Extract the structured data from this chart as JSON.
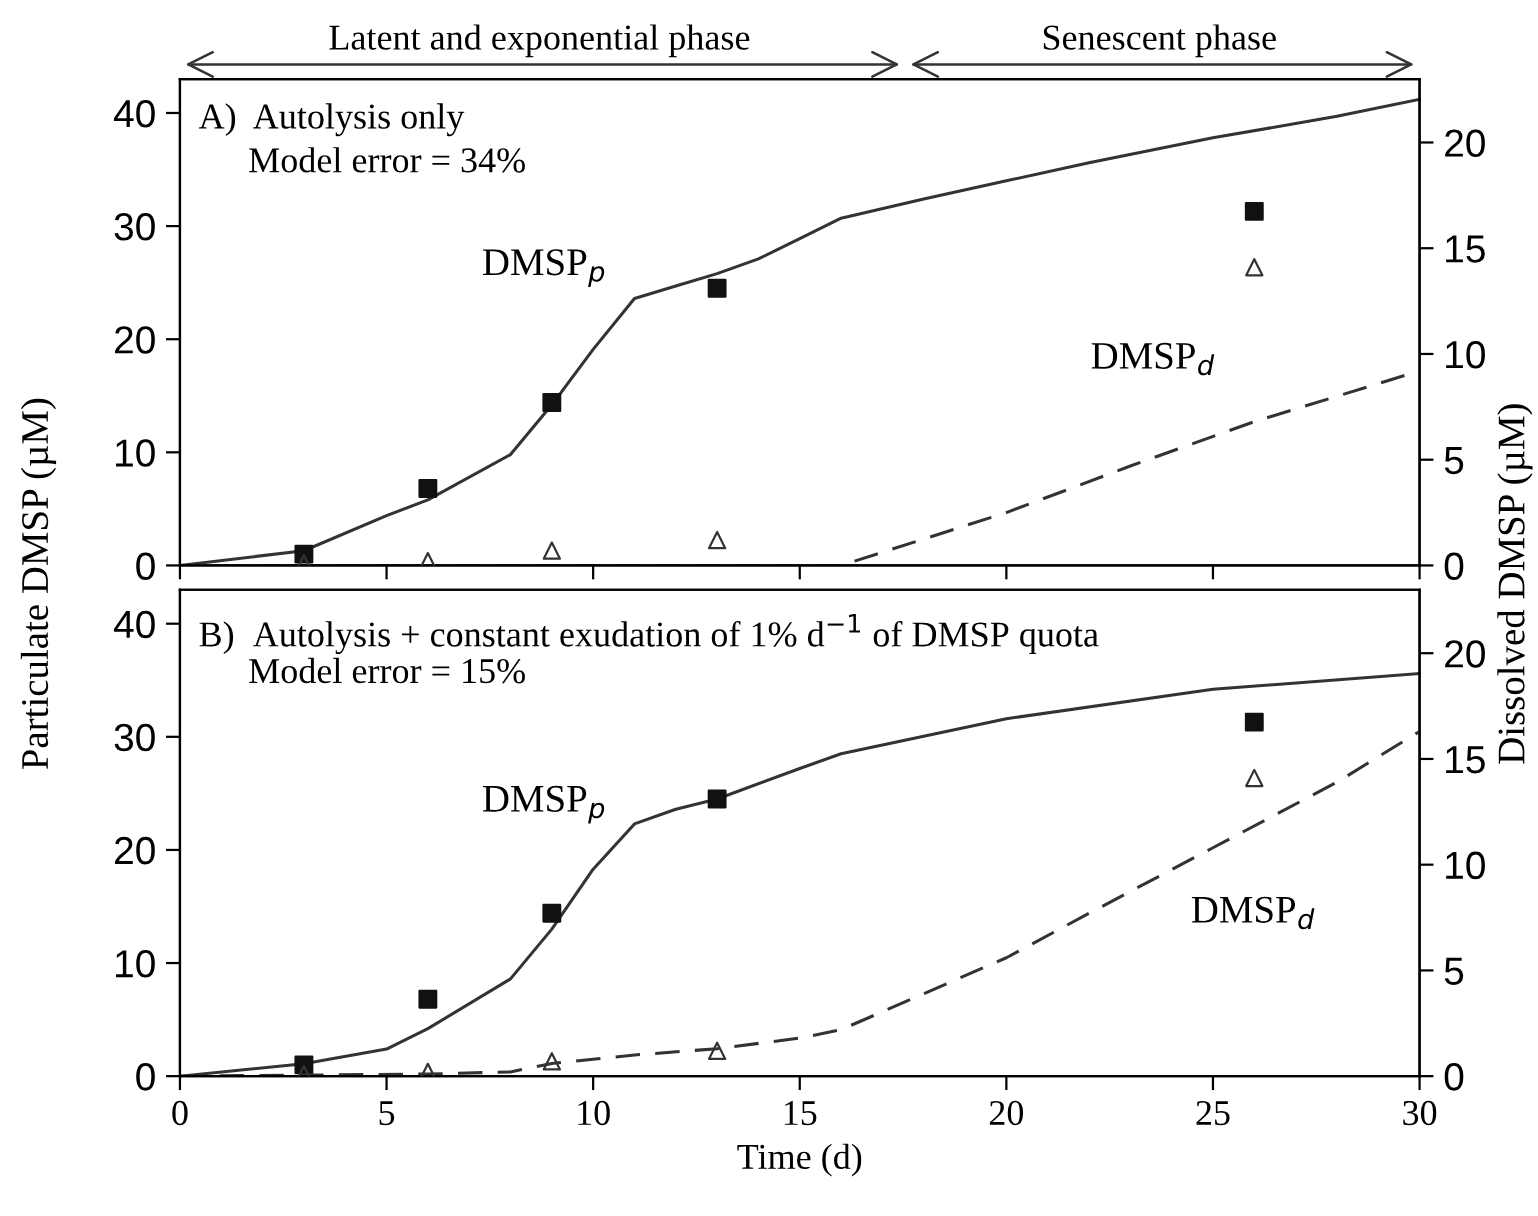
{
  "chart_data": [
    {
      "type": "line",
      "ylabel": "Particulate DMSP (µM)",
      "y2label": "Dissolved DMSP (µM)",
      "annotations": [
        "A)  Autolysis only",
        "Model error = 34%",
        "Latent and exponential phase",
        "Senescent phase"
      ],
      "xlim": [
        0,
        30
      ],
      "xticks": [
        0,
        5,
        10,
        15,
        20,
        25,
        30
      ],
      "ylim": [
        0,
        43
      ],
      "yticks": [
        0,
        10,
        20,
        30,
        40
      ],
      "y2lim": [
        0,
        23
      ],
      "y2ticks": [
        0,
        5,
        10,
        15,
        20
      ],
      "tick_labels": "y",
      "grid": false,
      "legend": false,
      "series": [
        {
          "type": "line",
          "name": "DMSP$_{p}$",
          "color": "#333333",
          "line_style": "solid",
          "x": [
            0,
            3,
            5,
            6,
            8,
            9,
            10,
            11,
            12,
            13,
            14,
            15,
            16,
            18,
            20,
            22,
            25,
            28,
            30
          ],
          "values": [
            0,
            1.3,
            4.4,
            5.8,
            9.8,
            14.2,
            19.1,
            23.6,
            24.7,
            25.8,
            27.1,
            28.9,
            30.7,
            32.4,
            34.0,
            35.6,
            37.8,
            39.7,
            41.2
          ]
        },
        {
          "type": "line",
          "name": "DMSP$_{d}$",
          "axis": "y2",
          "color": "#333333",
          "line_style": "dashed",
          "x": [
            0,
            16,
            20,
            23,
            26,
            30
          ],
          "values": [
            0,
            0,
            2.5,
            4.7,
            6.8,
            9.2
          ]
        },
        {
          "type": "scatter",
          "marker": "square",
          "color": "#111111",
          "x": [
            3,
            6,
            9,
            13,
            26
          ],
          "values": [
            1,
            6.8,
            14.4,
            24.5,
            31.3
          ]
        },
        {
          "type": "scatter",
          "axis": "y2",
          "marker": "triangle",
          "color": "#333333",
          "x": [
            3,
            6,
            9,
            13,
            26
          ],
          "values": [
            0.1,
            0.2,
            0.7,
            1.2,
            14.1
          ]
        }
      ]
    },
    {
      "type": "line",
      "xlabel": "Time (d)",
      "annotations": [
        "B)  Autolysis + constant exudation of 1% d$^{−1}$ of DMSP quota",
        "Model error = 15%"
      ],
      "xlim": [
        0,
        30
      ],
      "xticks": [
        0,
        5,
        10,
        15,
        20,
        25,
        30
      ],
      "ylim": [
        0,
        43
      ],
      "yticks": [
        0,
        10,
        20,
        30,
        40
      ],
      "y2lim": [
        0,
        23
      ],
      "y2ticks": [
        0,
        5,
        10,
        15,
        20
      ],
      "grid": false,
      "legend": false,
      "series": [
        {
          "type": "line",
          "name": "DMSP$_{p}$",
          "color": "#333333",
          "line_style": "solid",
          "x": [
            0,
            3,
            5,
            6,
            8,
            9,
            10,
            11,
            12,
            13,
            15,
            16,
            20,
            25,
            30
          ],
          "values": [
            0,
            1.1,
            2.4,
            4.2,
            8.6,
            13,
            18.3,
            22.3,
            23.6,
            24.5,
            27.2,
            28.5,
            31.6,
            34.2,
            35.6
          ]
        },
        {
          "type": "line",
          "name": "DMSP$_{d}$",
          "axis": "y2",
          "color": "#333333",
          "line_style": "dashed",
          "x": [
            0,
            6,
            8,
            9,
            11,
            13,
            15,
            16,
            18,
            20,
            22,
            25,
            28,
            30
          ],
          "values": [
            0,
            0.1,
            0.2,
            0.6,
            1.0,
            1.3,
            1.8,
            2.2,
            3.9,
            5.6,
            7.7,
            10.8,
            13.9,
            16.3
          ]
        },
        {
          "type": "scatter",
          "marker": "square",
          "color": "#111111",
          "x": [
            3,
            6,
            9,
            13,
            26
          ],
          "values": [
            1,
            6.8,
            14.4,
            24.5,
            31.3
          ]
        },
        {
          "type": "scatter",
          "axis": "y2",
          "marker": "triangle",
          "color": "#333333",
          "x": [
            3,
            6,
            9,
            13,
            26
          ],
          "values": [
            0.1,
            0.2,
            0.7,
            1.2,
            14.1
          ]
        }
      ]
    }
  ]
}
